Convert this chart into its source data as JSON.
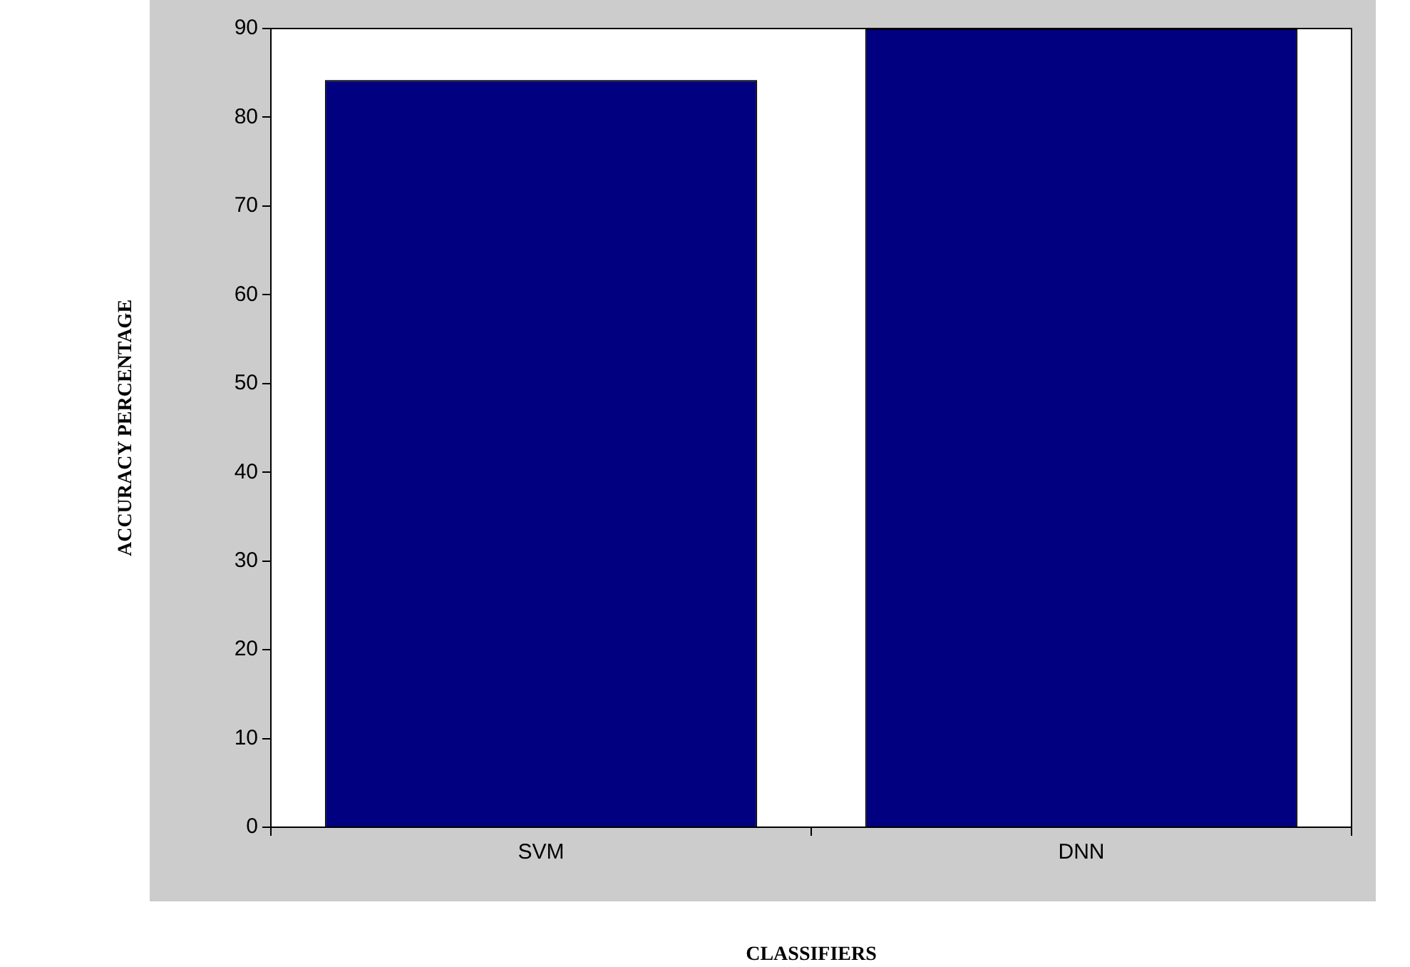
{
  "chart_data": {
    "type": "bar",
    "xlabel": "CLASSIFIERS",
    "ylabel": "ACCURACY PERCENTAGE",
    "categories": [
      "SVM",
      "DNN"
    ],
    "values": [
      84.2,
      90
    ],
    "color": "#000080",
    "ylim": [
      0,
      90
    ],
    "yticks": [
      0,
      10,
      20,
      30,
      40,
      50,
      60,
      70,
      80,
      90
    ],
    "grid": false,
    "legend": false
  }
}
